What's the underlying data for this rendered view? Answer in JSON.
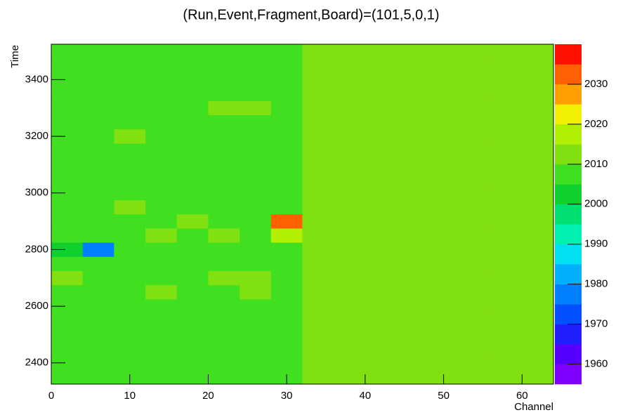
{
  "chart_data": {
    "type": "heatmap",
    "title": "(Run,Event,Fragment,Board)=(101,5,0,1)",
    "x_label": "Channel",
    "y_label": "Time",
    "xbins": [
      0,
      4,
      8,
      12,
      16,
      20,
      24,
      28,
      32,
      36,
      40,
      44,
      48,
      52,
      56,
      60,
      64
    ],
    "ybins": [
      2325,
      2375,
      2425,
      2475,
      2525,
      2575,
      2625,
      2675,
      2725,
      2775,
      2825,
      2875,
      2925,
      2975,
      3025,
      3075,
      3125,
      3175,
      3225,
      3275,
      3325,
      3375,
      3425,
      3475,
      3525
    ],
    "values": [
      [
        2008,
        2009,
        2008,
        2008,
        2009,
        2008,
        2009,
        2008,
        2011,
        2012,
        2011,
        2011,
        2012,
        2011,
        2012,
        2011
      ],
      [
        2009,
        2008,
        2009,
        2008,
        2008,
        2009,
        2008,
        2009,
        2012,
        2011,
        2011,
        2012,
        2011,
        2011,
        2012,
        2011
      ],
      [
        2008,
        2008,
        2009,
        2009,
        2008,
        2008,
        2009,
        2008,
        2011,
        2011,
        2012,
        2011,
        2012,
        2011,
        2011,
        2012
      ],
      [
        2009,
        2008,
        2008,
        2009,
        2009,
        2008,
        2008,
        2009,
        2012,
        2011,
        2011,
        2012,
        2011,
        2012,
        2011,
        2011
      ],
      [
        2008,
        2009,
        2008,
        2008,
        2009,
        2009,
        2008,
        2008,
        2011,
        2012,
        2011,
        2011,
        2012,
        2011,
        2012,
        2011
      ],
      [
        2006,
        2007,
        2009,
        2008,
        2008,
        2008,
        2008,
        2009,
        2011,
        2011,
        2012,
        2011,
        2011,
        2012,
        2011,
        2012
      ],
      [
        2009,
        2008,
        2007,
        2010,
        2008,
        2006,
        2012,
        2007,
        2012,
        2011,
        2011,
        2012,
        2011,
        2011,
        2012,
        2011
      ],
      [
        2012,
        2007,
        2008,
        2009,
        2008,
        2014,
        2010,
        2008,
        2011,
        2012,
        2011,
        2011,
        2012,
        2011,
        2011,
        2012
      ],
      [
        2008,
        2009,
        2008,
        2008,
        2009,
        2008,
        2008,
        2009,
        2011,
        2011,
        2012,
        2011,
        2011,
        2012,
        2011,
        2011
      ],
      [
        2004,
        1975,
        2009,
        2008,
        2009,
        2008,
        2008,
        2009,
        2012,
        2011,
        2011,
        2012,
        2011,
        2011,
        2012,
        2011
      ],
      [
        2008,
        2009,
        2008,
        2012,
        2006,
        2010,
        2007,
        2015,
        2011,
        2012,
        2011,
        2011,
        2012,
        2011,
        2011,
        2012
      ],
      [
        2009,
        2008,
        2008,
        2009,
        2010,
        2008,
        2009,
        2030,
        2011,
        2011,
        2012,
        2011,
        2011,
        2012,
        2011,
        2011
      ],
      [
        2008,
        2009,
        2012,
        2008,
        2008,
        2009,
        2008,
        2009,
        2012,
        2011,
        2011,
        2012,
        2011,
        2011,
        2012,
        2011
      ],
      [
        2009,
        2008,
        2008,
        2009,
        2008,
        2008,
        2009,
        2008,
        2011,
        2012,
        2011,
        2011,
        2012,
        2011,
        2011,
        2012
      ],
      [
        2007,
        2008,
        2007,
        2008,
        2009,
        2008,
        2009,
        2008,
        2011,
        2011,
        2012,
        2011,
        2011,
        2012,
        2011,
        2011
      ],
      [
        2008,
        2008,
        2009,
        2007,
        2007,
        2008,
        2008,
        2009,
        2012,
        2011,
        2011,
        2012,
        2011,
        2011,
        2012,
        2011
      ],
      [
        2009,
        2008,
        2008,
        2009,
        2008,
        2008,
        2009,
        2008,
        2011,
        2012,
        2011,
        2011,
        2012,
        2011,
        2011,
        2012
      ],
      [
        2008,
        2009,
        2013,
        2008,
        2009,
        2008,
        2008,
        2009,
        2011,
        2011,
        2012,
        2011,
        2011,
        2012,
        2011,
        2011
      ],
      [
        2009,
        2008,
        2008,
        2009,
        2008,
        2009,
        2008,
        2008,
        2012,
        2011,
        2011,
        2012,
        2011,
        2011,
        2012,
        2011
      ],
      [
        2008,
        2009,
        2008,
        2008,
        2009,
        2013,
        2010,
        2008,
        2011,
        2012,
        2011,
        2011,
        2012,
        2011,
        2011,
        2012
      ],
      [
        2009,
        2008,
        2009,
        2008,
        2008,
        2009,
        2008,
        2009,
        2011,
        2011,
        2012,
        2011,
        2011,
        2012,
        2011,
        2011
      ],
      [
        2008,
        2008,
        2009,
        2009,
        2008,
        2008,
        2009,
        2008,
        2012,
        2011,
        2011,
        2012,
        2011,
        2011,
        2012,
        2011
      ],
      [
        2009,
        2009,
        2008,
        2008,
        2009,
        2008,
        2008,
        2009,
        2011,
        2012,
        2011,
        2011,
        2012,
        2011,
        2011,
        2012
      ],
      [
        2008,
        2009,
        2008,
        2009,
        2008,
        2009,
        2008,
        2008,
        2011,
        2011,
        2012,
        2011,
        2011,
        2012,
        2011,
        2011
      ]
    ],
    "xlim": [
      0,
      64
    ],
    "xticks": [
      0,
      10,
      20,
      30,
      40,
      50,
      60
    ],
    "ylim": [
      2325,
      3525
    ],
    "yticks": [
      2400,
      2600,
      2800,
      3000,
      3200,
      3400
    ],
    "zlim": [
      1955,
      2040
    ],
    "zticks": [
      1960,
      1970,
      1980,
      1990,
      2000,
      2010,
      2020,
      2030
    ],
    "palette": [
      "#7d00ff",
      "#5500ff",
      "#2020ff",
      "#0050ff",
      "#0080ff",
      "#00b0ff",
      "#00e0f0",
      "#00f0b0",
      "#00e070",
      "#10d030",
      "#40e020",
      "#80e010",
      "#b0f000",
      "#f0f000",
      "#ffa000",
      "#ff6000",
      "#ff1000"
    ]
  }
}
